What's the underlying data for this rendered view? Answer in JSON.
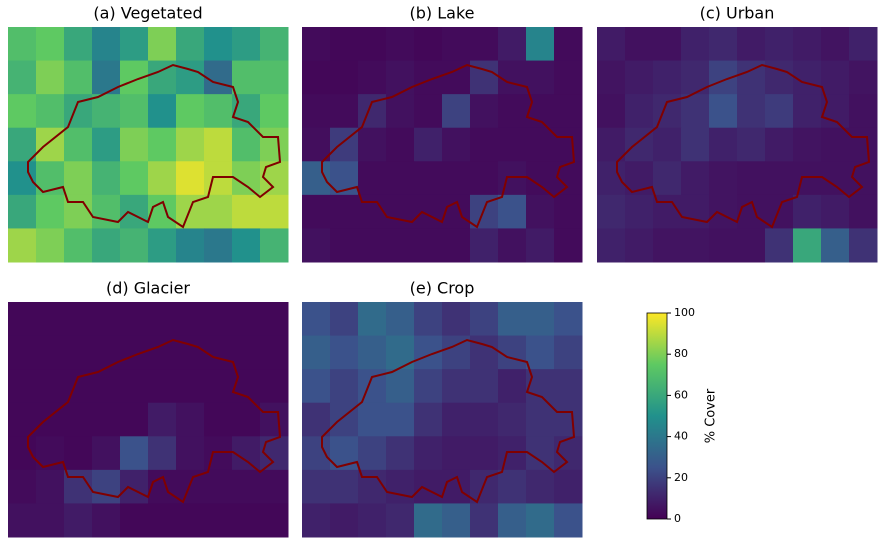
{
  "chart_data": {
    "type": "heatmap",
    "colormap": "viridis",
    "panels": [
      {
        "title": "(a) Vegetated",
        "values": [
          [
            70,
            75,
            60,
            45,
            55,
            80,
            60,
            50,
            55,
            65
          ],
          [
            65,
            80,
            70,
            40,
            75,
            60,
            55,
            35,
            70,
            70
          ],
          [
            75,
            70,
            60,
            65,
            70,
            50,
            75,
            70,
            60,
            75
          ],
          [
            60,
            85,
            70,
            55,
            80,
            75,
            85,
            90,
            70,
            80
          ],
          [
            50,
            70,
            80,
            65,
            75,
            85,
            95,
            90,
            80,
            85
          ],
          [
            60,
            75,
            80,
            70,
            60,
            75,
            85,
            85,
            90,
            90
          ],
          [
            85,
            80,
            70,
            60,
            65,
            55,
            45,
            40,
            50,
            65
          ]
        ]
      },
      {
        "title": "(b) Lake",
        "values": [
          [
            3,
            2,
            2,
            3,
            2,
            3,
            3,
            8,
            45,
            3
          ],
          [
            2,
            2,
            3,
            5,
            3,
            3,
            15,
            5,
            5,
            3
          ],
          [
            3,
            3,
            12,
            5,
            3,
            20,
            5,
            3,
            3,
            3
          ],
          [
            4,
            18,
            5,
            3,
            10,
            5,
            3,
            3,
            3,
            3
          ],
          [
            30,
            25,
            3,
            3,
            3,
            3,
            3,
            5,
            3,
            3
          ],
          [
            3,
            3,
            3,
            3,
            3,
            3,
            20,
            25,
            5,
            3
          ],
          [
            5,
            3,
            3,
            3,
            3,
            3,
            10,
            5,
            8,
            3
          ]
        ]
      },
      {
        "title": "(c) Urban",
        "values": [
          [
            8,
            5,
            5,
            10,
            12,
            8,
            10,
            8,
            6,
            10
          ],
          [
            6,
            8,
            10,
            12,
            20,
            15,
            12,
            10,
            8,
            6
          ],
          [
            5,
            10,
            12,
            15,
            25,
            15,
            18,
            10,
            8,
            5
          ],
          [
            8,
            12,
            10,
            15,
            10,
            12,
            8,
            6,
            5,
            5
          ],
          [
            10,
            8,
            12,
            8,
            6,
            5,
            5,
            5,
            5,
            5
          ],
          [
            12,
            10,
            8,
            8,
            6,
            5,
            5,
            10,
            8,
            5
          ],
          [
            10,
            8,
            6,
            6,
            5,
            5,
            15,
            60,
            30,
            15
          ]
        ]
      },
      {
        "title": "(d) Glacier",
        "values": [
          [
            2,
            2,
            2,
            2,
            2,
            2,
            2,
            2,
            2,
            2
          ],
          [
            2,
            2,
            2,
            2,
            2,
            2,
            2,
            2,
            2,
            2
          ],
          [
            2,
            2,
            2,
            2,
            2,
            2,
            2,
            2,
            2,
            2
          ],
          [
            2,
            2,
            2,
            2,
            2,
            8,
            5,
            2,
            2,
            5
          ],
          [
            2,
            3,
            2,
            5,
            25,
            15,
            5,
            3,
            8,
            12
          ],
          [
            3,
            5,
            15,
            20,
            10,
            3,
            3,
            3,
            3,
            3
          ],
          [
            5,
            5,
            8,
            5,
            2,
            2,
            2,
            2,
            2,
            2
          ]
        ]
      },
      {
        "title": "(e) Crop",
        "values": [
          [
            25,
            20,
            35,
            30,
            20,
            15,
            20,
            30,
            30,
            25
          ],
          [
            30,
            25,
            30,
            35,
            25,
            20,
            15,
            20,
            25,
            20
          ],
          [
            25,
            20,
            25,
            30,
            20,
            15,
            15,
            10,
            15,
            15
          ],
          [
            15,
            20,
            25,
            25,
            15,
            10,
            10,
            12,
            15,
            15
          ],
          [
            20,
            25,
            20,
            15,
            10,
            8,
            8,
            10,
            15,
            12
          ],
          [
            15,
            15,
            12,
            10,
            8,
            8,
            12,
            15,
            12,
            10
          ],
          [
            10,
            8,
            10,
            12,
            35,
            30,
            15,
            30,
            35,
            25
          ]
        ]
      }
    ],
    "colorbar": {
      "label": "% Cover",
      "ylim": [
        0,
        100
      ],
      "yticks": [
        0,
        20,
        40,
        60,
        80,
        100
      ]
    }
  }
}
